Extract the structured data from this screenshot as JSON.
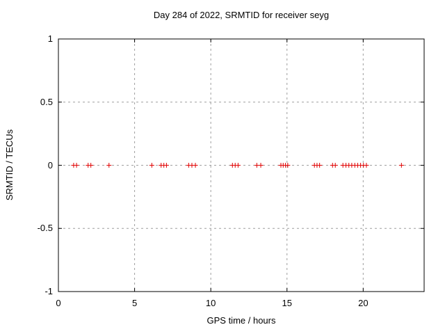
{
  "chart_data": {
    "type": "scatter",
    "title": "Day 284 of 2022, SRMTID for receiver seyg",
    "xlabel": "GPS time / hours",
    "ylabel": "SRMTID / TECUs",
    "xlim": [
      0,
      24
    ],
    "ylim": [
      -1,
      1
    ],
    "xticks": [
      0,
      5,
      10,
      15,
      20
    ],
    "xtick_labels": [
      "0",
      "5",
      "10",
      "15",
      "20"
    ],
    "yticks": [
      1,
      0.5,
      0,
      -0.5,
      -1
    ],
    "ytick_labels": [
      "1",
      "0.5",
      "0",
      "-0.5",
      "-1"
    ],
    "grid": true,
    "legend_position": "none",
    "marker": "plus",
    "colors": {
      "marker": "#e00000",
      "grid": "#9e9e9e",
      "axis": "#000000",
      "text": "#000000",
      "background": "#ffffff"
    },
    "series": [
      {
        "name": "SRMTID",
        "x": [
          1.0,
          1.19,
          1.95,
          2.13,
          3.32,
          6.13,
          6.74,
          6.92,
          7.09,
          8.55,
          8.76,
          8.99,
          11.42,
          11.6,
          11.79,
          13.02,
          13.28,
          14.6,
          14.75,
          14.9,
          15.05,
          16.8,
          16.97,
          17.14,
          17.99,
          18.17,
          18.67,
          18.87,
          19.06,
          19.25,
          19.45,
          19.64,
          19.83,
          20.02,
          20.21,
          22.51
        ],
        "y": [
          0,
          0,
          0,
          0,
          0,
          0,
          0,
          0,
          0,
          0,
          0,
          0,
          0,
          0,
          0,
          0,
          0,
          0,
          0,
          0,
          0,
          0,
          0,
          0,
          0,
          0,
          0,
          0,
          0,
          0,
          0,
          0,
          0,
          0,
          0,
          0
        ]
      }
    ]
  }
}
